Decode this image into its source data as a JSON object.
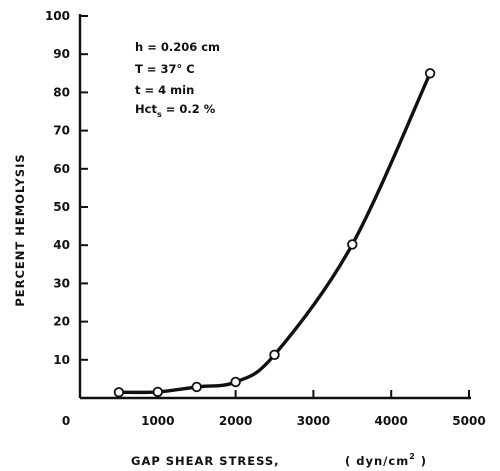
{
  "chart_data": {
    "type": "line",
    "title": "",
    "xlabel": "GAP SHEAR STRESS,",
    "xunit": "( dyn/cm",
    "xunit_sup": "2",
    "xunit_close": " )",
    "ylabel": "PERCENT HEMOLYSIS",
    "xlim": [
      0,
      5000
    ],
    "ylim": [
      0,
      100
    ],
    "xticks": [
      0,
      1000,
      2000,
      3000,
      4000,
      5000
    ],
    "yticks": [
      10,
      20,
      30,
      40,
      50,
      60,
      70,
      80,
      90,
      100
    ],
    "grid": false,
    "series": [
      {
        "x": [
          500,
          1000,
          1500,
          2000,
          2500,
          3500,
          4500
        ],
        "y": [
          1.5,
          1.6,
          2.9,
          4.2,
          11.3,
          40.2,
          85.0
        ]
      }
    ],
    "annotations": {
      "h": "h = 0.206 cm",
      "T": "T = 37° C",
      "t": "t = 4 min",
      "hct_main": "Hct",
      "hct_sub": "s",
      "hct_value": " = 0.2  %"
    }
  }
}
